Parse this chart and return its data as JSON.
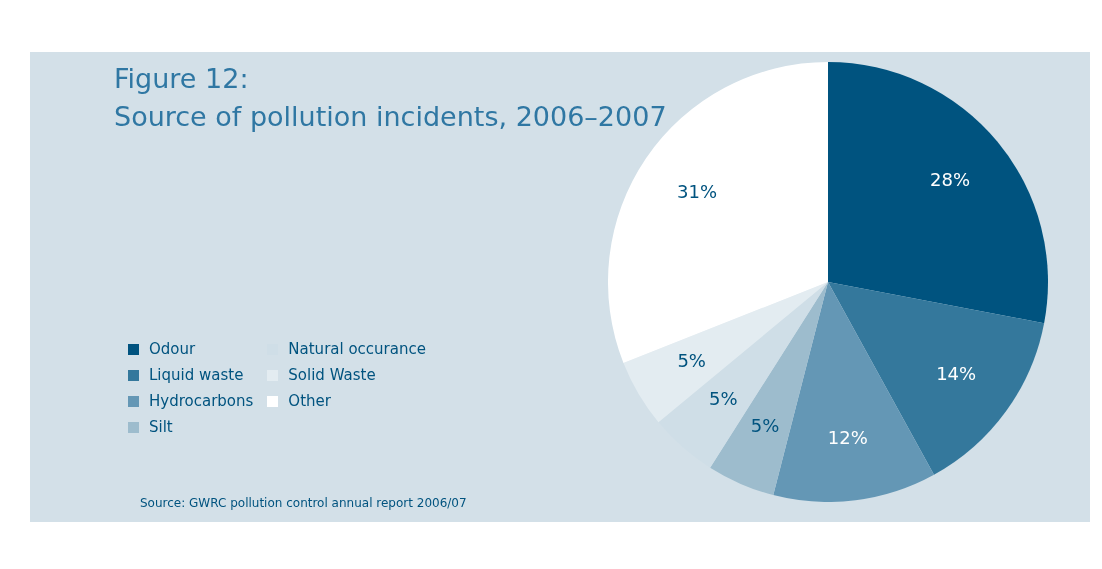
{
  "chart_data": {
    "type": "pie",
    "title": "Figure 12:\nSource of pollution incidents, 2006–2007",
    "categories": [
      "Odour",
      "Liquid waste",
      "Hydrocarbons",
      "Silt",
      "Natural occurance",
      "Solid Waste",
      "Other"
    ],
    "values": [
      28,
      14,
      12,
      5,
      5,
      5,
      31
    ],
    "value_labels": [
      "28%",
      "14%",
      "12%",
      "5%",
      "5%",
      "5%",
      "31%"
    ],
    "colors": [
      "#00537f",
      "#34789c",
      "#6497b5",
      "#9dbccd",
      "#cfdee7",
      "#e3ecf1",
      "#ffffff"
    ],
    "legend": "bottom left",
    "annotations": [
      "Source: GWRC pollution control annual report 2006/07"
    ]
  }
}
